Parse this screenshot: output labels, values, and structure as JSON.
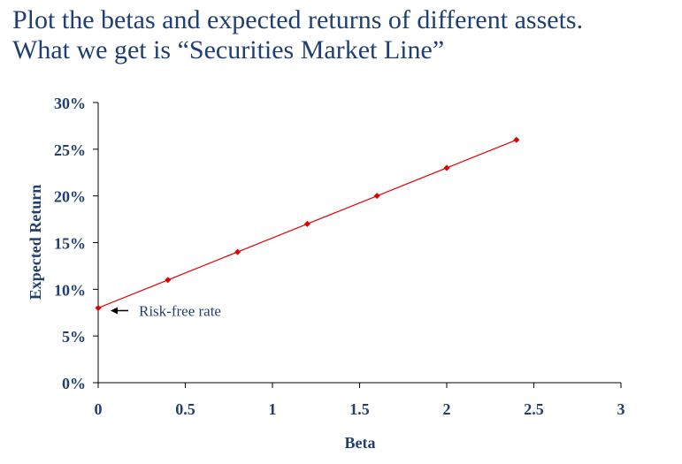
{
  "slide": {
    "title_line1": "Plot the betas and expected returns of different assets.",
    "title_line2": "What we get is “Securities Market Line”"
  },
  "chart_data": {
    "type": "line",
    "xlabel": "Beta",
    "ylabel": "Expected Return",
    "xlim": [
      0,
      3
    ],
    "ylim": [
      0,
      0.3
    ],
    "x_ticks": [
      "0",
      "0.5",
      "1",
      "1.5",
      "2",
      "2.5",
      "3"
    ],
    "y_ticks": [
      "0%",
      "5%",
      "10%",
      "15%",
      "20%",
      "25%",
      "30%"
    ],
    "x_tick_values": [
      0,
      0.5,
      1,
      1.5,
      2,
      2.5,
      3
    ],
    "y_tick_values": [
      0,
      0.05,
      0.1,
      0.15,
      0.2,
      0.25,
      0.3
    ],
    "grid": false,
    "legend": "none",
    "series": [
      {
        "color": "#e00000",
        "marker": "diamond",
        "x": [
          0,
          0.4,
          0.8,
          1.2,
          1.6,
          2.0,
          2.4
        ],
        "y": [
          0.08,
          0.11,
          0.14,
          0.17,
          0.2,
          0.23,
          0.26
        ]
      }
    ],
    "annotations": [
      {
        "text": "Risk-free rate",
        "x": 0,
        "y": 0.08,
        "arrow": "left"
      }
    ],
    "axis_color": "#000000",
    "text_color": "#1f3f73"
  }
}
